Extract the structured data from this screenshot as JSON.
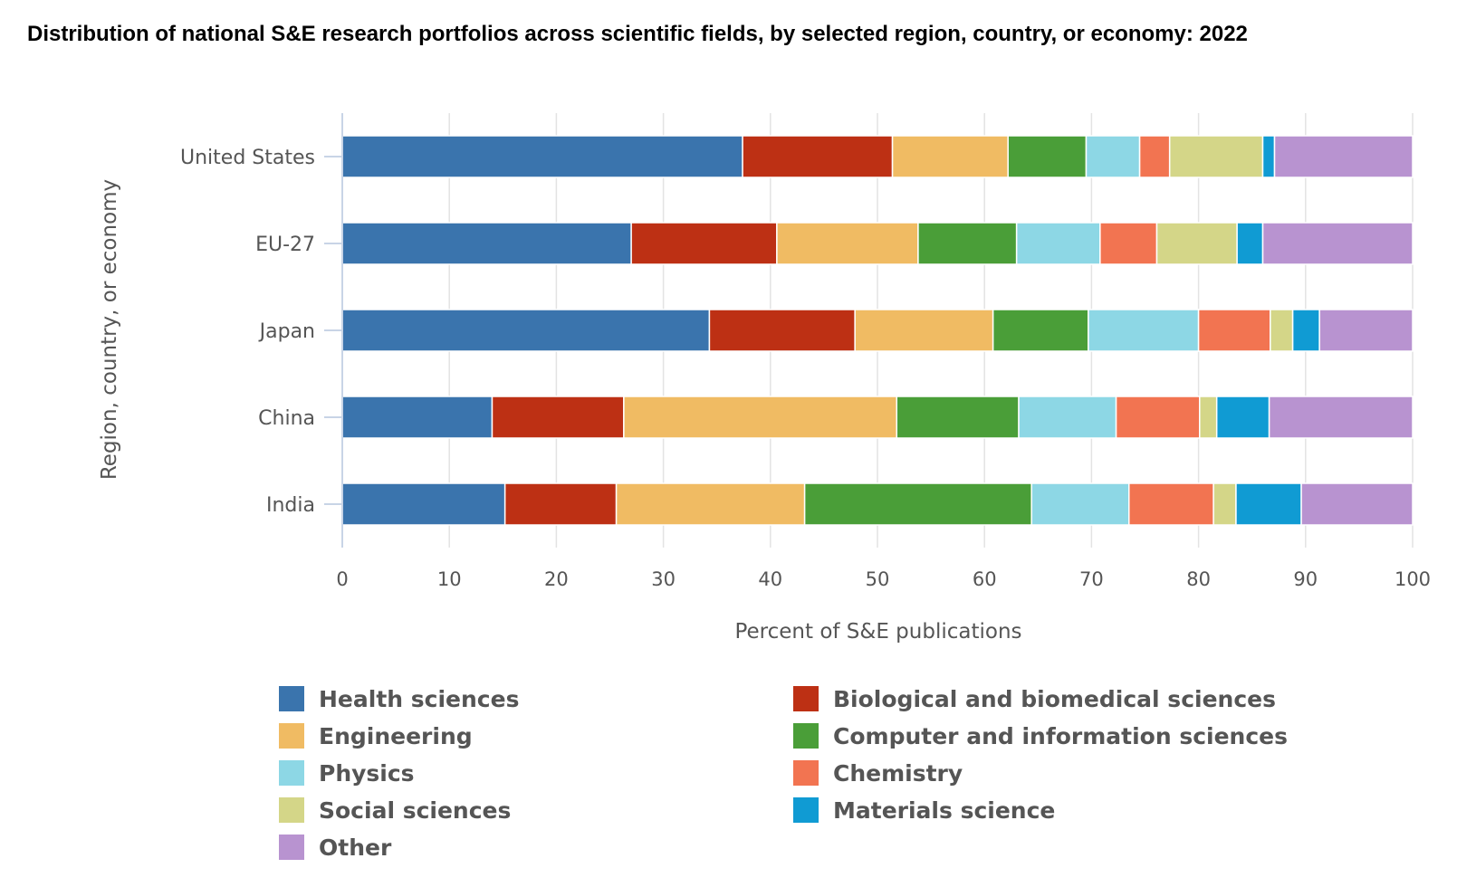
{
  "title": "Distribution of national S&E research portfolios across scientific fields, by selected region, country, or economy: 2022",
  "chart_data": {
    "type": "bar",
    "orientation": "horizontal",
    "stacked": true,
    "categories": [
      "United States",
      "EU-27",
      "Japan",
      "China",
      "India"
    ],
    "xlabel": "Percent of S&E publications",
    "ylabel": "Region, country, or economy",
    "xlim": [
      0,
      100
    ],
    "xticks": [
      "0",
      "10",
      "20",
      "30",
      "40",
      "50",
      "60",
      "70",
      "80",
      "90",
      "100"
    ],
    "grid": true,
    "legend_position": "bottom",
    "series": [
      {
        "name": "Health sciences",
        "color": "#3a74ad",
        "values": [
          37.4,
          27.0,
          34.3,
          14.0,
          15.2
        ]
      },
      {
        "name": "Biological and biomedical sciences",
        "color": "#bd3014",
        "values": [
          14.0,
          13.6,
          13.6,
          12.3,
          10.4
        ]
      },
      {
        "name": "Engineering",
        "color": "#f0bb63",
        "values": [
          10.8,
          13.2,
          12.9,
          25.5,
          17.6
        ]
      },
      {
        "name": "Computer and information sciences",
        "color": "#4a9e38",
        "values": [
          7.3,
          9.2,
          8.9,
          11.4,
          21.2
        ]
      },
      {
        "name": "Physics",
        "color": "#8dd7e5",
        "values": [
          5.0,
          7.8,
          10.3,
          9.1,
          9.1
        ]
      },
      {
        "name": "Chemistry",
        "color": "#f27451",
        "values": [
          2.8,
          5.3,
          6.7,
          7.8,
          7.9
        ]
      },
      {
        "name": "Social sciences",
        "color": "#d4d688",
        "values": [
          8.7,
          7.5,
          2.1,
          1.6,
          2.1
        ]
      },
      {
        "name": "Materials science",
        "color": "#109bd3",
        "values": [
          1.1,
          2.4,
          2.5,
          4.9,
          6.1
        ]
      },
      {
        "name": "Other",
        "color": "#b893d0",
        "values": [
          12.9,
          14.0,
          8.7,
          13.4,
          10.4
        ]
      }
    ]
  },
  "legend_items": [
    {
      "label": "Health sciences",
      "color": "#3a74ad"
    },
    {
      "label": "Biological and biomedical sciences",
      "color": "#bd3014"
    },
    {
      "label": "Engineering",
      "color": "#f0bb63"
    },
    {
      "label": "Computer and information sciences",
      "color": "#4a9e38"
    },
    {
      "label": "Physics",
      "color": "#8dd7e5"
    },
    {
      "label": "Chemistry",
      "color": "#f27451"
    },
    {
      "label": "Social sciences",
      "color": "#d4d688"
    },
    {
      "label": "Materials science",
      "color": "#109bd3"
    },
    {
      "label": "Other",
      "color": "#b893d0"
    }
  ]
}
